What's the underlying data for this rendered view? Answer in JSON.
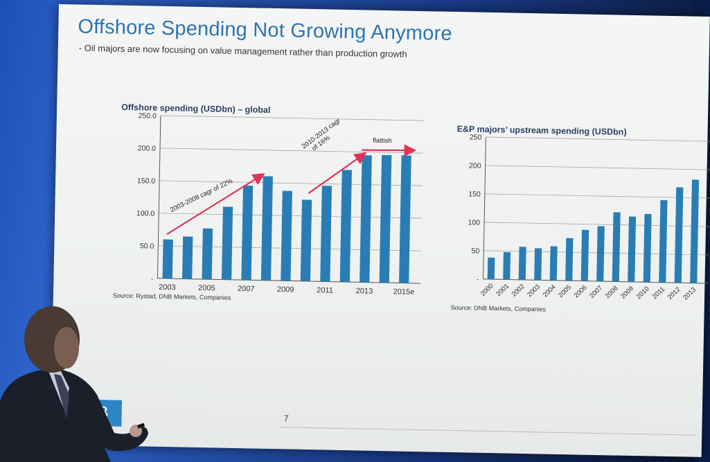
{
  "slide": {
    "title": "Offshore Spending Not Growing Anymore",
    "subtitle": "- Oil majors are now focusing on value management rather than production growth",
    "page_number": "7",
    "logo": "DNB"
  },
  "colors": {
    "bar": "#2a7db4",
    "arrow": "#e0335a",
    "title": "#2d73b3"
  },
  "chart_data": [
    {
      "type": "bar",
      "title": "Offshore spending (USDbn) – global",
      "source": "Source: Rystad, DNB Markets, Companies",
      "categories": [
        "2003",
        "2004",
        "2005",
        "2006",
        "2007",
        "2008",
        "2009",
        "2010",
        "2011",
        "2012",
        "2013",
        "2014",
        "2015e"
      ],
      "x_tick_labels": [
        "2003",
        "",
        "2005",
        "",
        "2007",
        "",
        "2009",
        "",
        "2011",
        "",
        "2013",
        "",
        "2015e"
      ],
      "values": [
        60,
        65,
        78,
        112,
        145,
        160,
        138,
        125,
        147,
        172,
        195,
        196,
        196
      ],
      "ylim": [
        0,
        250
      ],
      "y_tick_labels": [
        "-",
        "50.0",
        "100.0",
        "150.0",
        "200.0",
        "250.0"
      ],
      "annotations": [
        "2003-2008 cagr of 22%",
        "2010-2013 cagr of 16%",
        "flattish"
      ]
    },
    {
      "type": "bar",
      "title": "E&P majors’ upstream spending (USDbn)",
      "source": "Source: DNB Markets, Companies",
      "categories": [
        "2000",
        "2001",
        "2002",
        "2003",
        "2004",
        "2005",
        "2006",
        "2007",
        "2008",
        "2009",
        "2010",
        "2011",
        "2012",
        "2013"
      ],
      "values": [
        38,
        48,
        58,
        56,
        60,
        75,
        90,
        97,
        122,
        115,
        120,
        145,
        168,
        182
      ],
      "ylim": [
        0,
        250
      ],
      "y_tick_labels": [
        "-",
        "50",
        "100",
        "150",
        "200",
        "250"
      ]
    }
  ]
}
